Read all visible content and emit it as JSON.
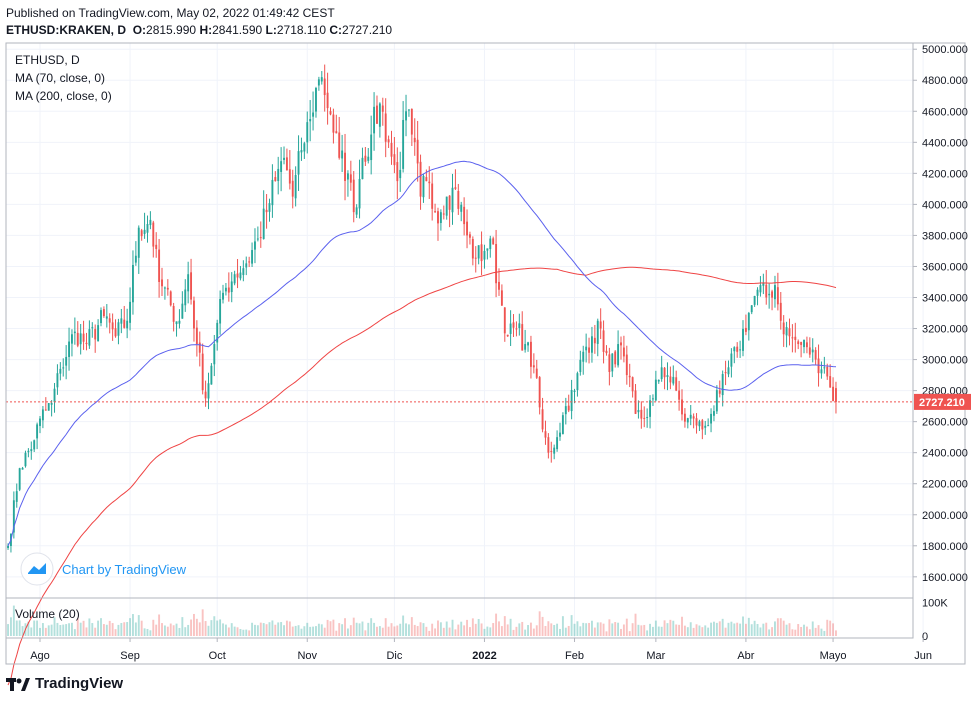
{
  "header": {
    "published": "Published on TradingView.com, May 02, 2022 01:49:42 CEST",
    "symbol": "ETHUSD:KRAKEN, D",
    "o_label": "O:",
    "o_value": "2815.990",
    "h_label": "H:",
    "h_value": "2841.590",
    "l_label": "L:",
    "l_value": "2718.110",
    "c_label": "C:",
    "c_value": "2727.210"
  },
  "legend": {
    "title": "ETHUSD, D",
    "ma70": "MA (70, close, 0)",
    "ma200": "MA (200, close, 0)",
    "volume": "Volume (20)"
  },
  "branding": {
    "badge": "Chart by TradingView",
    "logo": "TradingView"
  },
  "colors": {
    "up": "#26a69a",
    "down": "#ef5350",
    "ma70": "#5b61ee",
    "ma200": "#ef4444",
    "price_tag": "#ef5350"
  },
  "chart_data": {
    "type": "candlestick",
    "interval": "D",
    "symbol": "ETHUSD",
    "y_ticks": [
      "5000.000",
      "4800.000",
      "4600.000",
      "4400.000",
      "4200.000",
      "4000.000",
      "3800.000",
      "3600.000",
      "3400.000",
      "3200.000",
      "3000.000",
      "2800.000",
      "2600.000",
      "2400.000",
      "2200.000",
      "2000.000",
      "1800.000",
      "1600.000"
    ],
    "ylim": [
      1470,
      5040
    ],
    "x_ticks": [
      {
        "label": "Ago",
        "day": 0,
        "bold": false
      },
      {
        "label": "Sep",
        "day": 31,
        "bold": false
      },
      {
        "label": "Oct",
        "day": 61,
        "bold": false
      },
      {
        "label": "Nov",
        "day": 92,
        "bold": false
      },
      {
        "label": "Dic",
        "day": 122,
        "bold": false
      },
      {
        "label": "2022",
        "day": 153,
        "bold": true
      },
      {
        "label": "Feb",
        "day": 184,
        "bold": false
      },
      {
        "label": "Mar",
        "day": 212,
        "bold": false
      },
      {
        "label": "Abr",
        "day": 243,
        "bold": false
      },
      {
        "label": "Mayo",
        "day": 273,
        "bold": false
      },
      {
        "label": "Jun",
        "day": 304,
        "bold": false
      }
    ],
    "last_price": 2727.21,
    "last_price_label": "2727.210",
    "volume_ticks": [
      "100K",
      "0"
    ],
    "volume_max": 110000,
    "close_anchors": [
      [
        -11,
        1800
      ],
      [
        -7,
        2300
      ],
      [
        -2,
        2480
      ],
      [
        0,
        2620
      ],
      [
        4,
        2720
      ],
      [
        7,
        2940
      ],
      [
        12,
        3180
      ],
      [
        16,
        3100
      ],
      [
        22,
        3280
      ],
      [
        26,
        3150
      ],
      [
        30,
        3250
      ],
      [
        34,
        3850
      ],
      [
        38,
        3900
      ],
      [
        41,
        3500
      ],
      [
        45,
        3350
      ],
      [
        48,
        3250
      ],
      [
        51,
        3550
      ],
      [
        54,
        3100
      ],
      [
        57,
        2750
      ],
      [
        60,
        3100
      ],
      [
        63,
        3430
      ],
      [
        67,
        3550
      ],
      [
        71,
        3620
      ],
      [
        75,
        3780
      ],
      [
        78,
        3950
      ],
      [
        81,
        4150
      ],
      [
        84,
        4300
      ],
      [
        87,
        4050
      ],
      [
        90,
        4350
      ],
      [
        93,
        4550
      ],
      [
        95,
        4750
      ],
      [
        97,
        4820
      ],
      [
        100,
        4580
      ],
      [
        103,
        4300
      ],
      [
        106,
        4200
      ],
      [
        108,
        3950
      ],
      [
        111,
        4300
      ],
      [
        114,
        4450
      ],
      [
        117,
        4650
      ],
      [
        120,
        4400
      ],
      [
        123,
        4150
      ],
      [
        126,
        4600
      ],
      [
        128,
        4450
      ],
      [
        131,
        4050
      ],
      [
        133,
        4150
      ],
      [
        136,
        3950
      ],
      [
        140,
        4050
      ],
      [
        143,
        4100
      ],
      [
        147,
        3800
      ],
      [
        150,
        3650
      ],
      [
        153,
        3700
      ],
      [
        155,
        3780
      ],
      [
        158,
        3450
      ],
      [
        161,
        3150
      ],
      [
        164,
        3200
      ],
      [
        167,
        3100
      ],
      [
        170,
        2950
      ],
      [
        173,
        2550
      ],
      [
        175,
        2400
      ],
      [
        178,
        2500
      ],
      [
        181,
        2700
      ],
      [
        184,
        2800
      ],
      [
        187,
        3050
      ],
      [
        190,
        3150
      ],
      [
        193,
        3200
      ],
      [
        196,
        2920
      ],
      [
        199,
        3100
      ],
      [
        202,
        2900
      ],
      [
        205,
        2650
      ],
      [
        208,
        2620
      ],
      [
        211,
        2750
      ],
      [
        214,
        2950
      ],
      [
        216,
        2900
      ],
      [
        219,
        2800
      ],
      [
        222,
        2600
      ],
      [
        225,
        2620
      ],
      [
        228,
        2550
      ],
      [
        231,
        2650
      ],
      [
        234,
        2780
      ],
      [
        237,
        2950
      ],
      [
        240,
        3050
      ],
      [
        244,
        3300
      ],
      [
        247,
        3450
      ],
      [
        250,
        3400
      ],
      [
        253,
        3480
      ],
      [
        255,
        3250
      ],
      [
        258,
        3150
      ],
      [
        261,
        3100
      ],
      [
        264,
        3080
      ],
      [
        267,
        3000
      ],
      [
        270,
        2950
      ],
      [
        272,
        2820
      ],
      [
        274,
        2727
      ]
    ]
  }
}
